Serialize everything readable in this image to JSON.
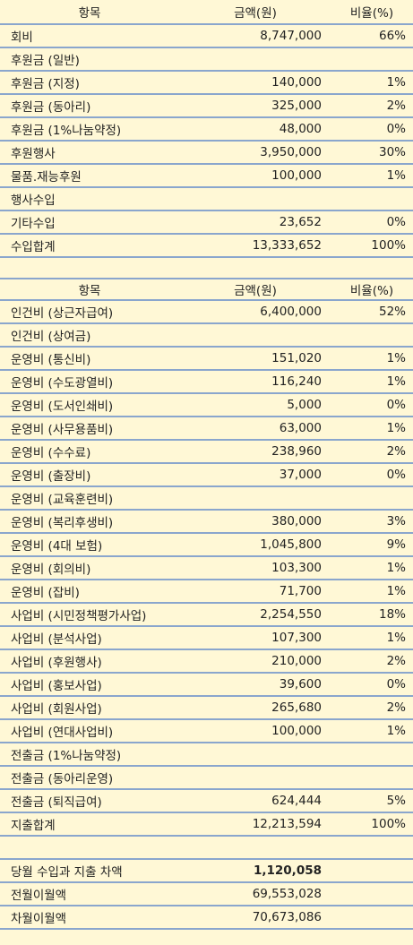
{
  "income": {
    "header": {
      "item": "항목",
      "amount": "금액(원)",
      "ratio": "비율(%)"
    },
    "rows": [
      {
        "item": "회비",
        "amount": "8,747,000",
        "ratio": "66%"
      },
      {
        "item": "후원금 (일반)",
        "amount": "",
        "ratio": ""
      },
      {
        "item": "후원금 (지정)",
        "amount": "140,000",
        "ratio": "1%"
      },
      {
        "item": "후원금 (동아리)",
        "amount": "325,000",
        "ratio": "2%"
      },
      {
        "item": "후원금 (1%나눔약정)",
        "amount": "48,000",
        "ratio": "0%"
      },
      {
        "item": "후원행사",
        "amount": "3,950,000",
        "ratio": "30%"
      },
      {
        "item": "물품.재능후원",
        "amount": "100,000",
        "ratio": "1%"
      },
      {
        "item": "행사수입",
        "amount": "",
        "ratio": ""
      },
      {
        "item": "기타수입",
        "amount": "23,652",
        "ratio": "0%"
      },
      {
        "item": "수입합계",
        "amount": "13,333,652",
        "ratio": "100%"
      }
    ]
  },
  "expense": {
    "header": {
      "item": "항목",
      "amount": "금액(원)",
      "ratio": "비율(%)"
    },
    "rows": [
      {
        "item": "인건비 (상근자급여)",
        "amount": "6,400,000",
        "ratio": "52%"
      },
      {
        "item": "인건비 (상여금)",
        "amount": "",
        "ratio": ""
      },
      {
        "item": "운영비 (통신비)",
        "amount": "151,020",
        "ratio": "1%"
      },
      {
        "item": "운영비 (수도광열비)",
        "amount": "116,240",
        "ratio": "1%"
      },
      {
        "item": "운영비 (도서인쇄비)",
        "amount": "5,000",
        "ratio": "0%"
      },
      {
        "item": "운영비 (사무용품비)",
        "amount": "63,000",
        "ratio": "1%"
      },
      {
        "item": "운영비 (수수료)",
        "amount": "238,960",
        "ratio": "2%"
      },
      {
        "item": "운영비 (출장비)",
        "amount": "37,000",
        "ratio": "0%"
      },
      {
        "item": "운영비 (교육훈련비)",
        "amount": "",
        "ratio": ""
      },
      {
        "item": "운영비 (복리후생비)",
        "amount": "380,000",
        "ratio": "3%"
      },
      {
        "item": "운영비 (4대 보험)",
        "amount": "1,045,800",
        "ratio": "9%"
      },
      {
        "item": "운영비 (회의비)",
        "amount": "103,300",
        "ratio": "1%"
      },
      {
        "item": "운영비 (잡비)",
        "amount": "71,700",
        "ratio": "1%"
      },
      {
        "item": "사업비 (시민정책평가사업)",
        "amount": "2,254,550",
        "ratio": "18%"
      },
      {
        "item": "사업비 (분석사업)",
        "amount": "107,300",
        "ratio": "1%"
      },
      {
        "item": "사업비 (후원행사)",
        "amount": "210,000",
        "ratio": "2%"
      },
      {
        "item": "사업비 (홍보사업)",
        "amount": "39,600",
        "ratio": "0%"
      },
      {
        "item": "사업비 (회원사업)",
        "amount": "265,680",
        "ratio": "2%"
      },
      {
        "item": "사업비 (연대사업비)",
        "amount": "100,000",
        "ratio": "1%"
      },
      {
        "item": "전출금 (1%나눔약정)",
        "amount": "",
        "ratio": ""
      },
      {
        "item": "전출금 (동아리운영)",
        "amount": "",
        "ratio": ""
      },
      {
        "item": "전출금 (퇴직급여)",
        "amount": "624,444",
        "ratio": "5%"
      },
      {
        "item": "지출합계",
        "amount": "12,213,594",
        "ratio": "100%"
      }
    ]
  },
  "summary": {
    "rows": [
      {
        "item": "당월 수입과 지출 차액",
        "amount": "1,120,058"
      },
      {
        "item": "전월이월액",
        "amount": "69,553,028"
      },
      {
        "item": "차월이월액",
        "amount": "70,673,086"
      }
    ]
  }
}
